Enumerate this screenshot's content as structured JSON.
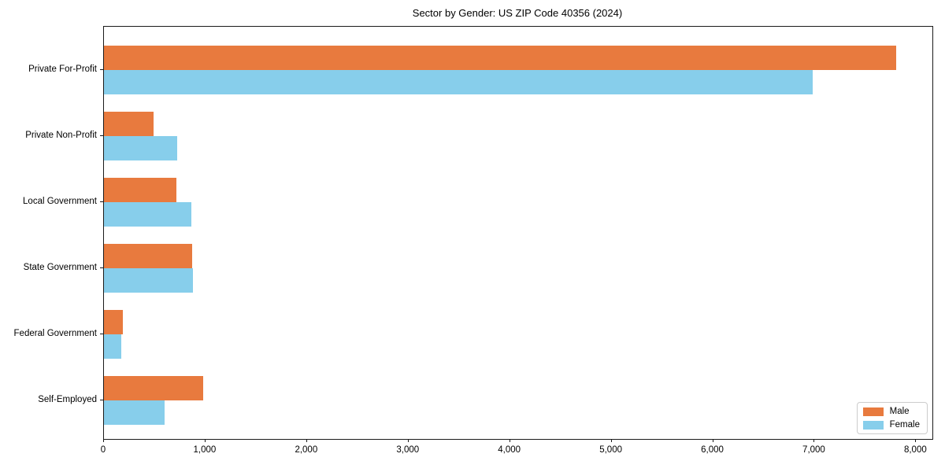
{
  "chart_data": {
    "type": "bar",
    "orientation": "horizontal",
    "title": "Sector by Gender: US ZIP Code 40356 (2024)",
    "categories": [
      "Private For-Profit",
      "Private Non-Profit",
      "Local Government",
      "State Government",
      "Federal Government",
      "Self-Employed"
    ],
    "series": [
      {
        "name": "Male",
        "color": "#e87a3e",
        "values": [
          7800,
          490,
          710,
          870,
          190,
          980
        ]
      },
      {
        "name": "Female",
        "color": "#87ceeb",
        "values": [
          6980,
          720,
          860,
          880,
          170,
          600
        ]
      }
    ],
    "xlim": [
      0,
      8160
    ],
    "xticks": [
      0,
      1000,
      2000,
      3000,
      4000,
      5000,
      6000,
      7000,
      8000
    ],
    "xtick_labels": [
      "0",
      "1,000",
      "2,000",
      "3,000",
      "4,000",
      "5,000",
      "6,000",
      "7,000",
      "8,000"
    ],
    "xlabel": "",
    "ylabel": "",
    "grid": false,
    "legend": {
      "position": "lower right"
    },
    "colors": {
      "male": "#e87a3e",
      "female": "#87ceeb",
      "spine": "#1a1a1a",
      "background": "#ffffff"
    }
  }
}
